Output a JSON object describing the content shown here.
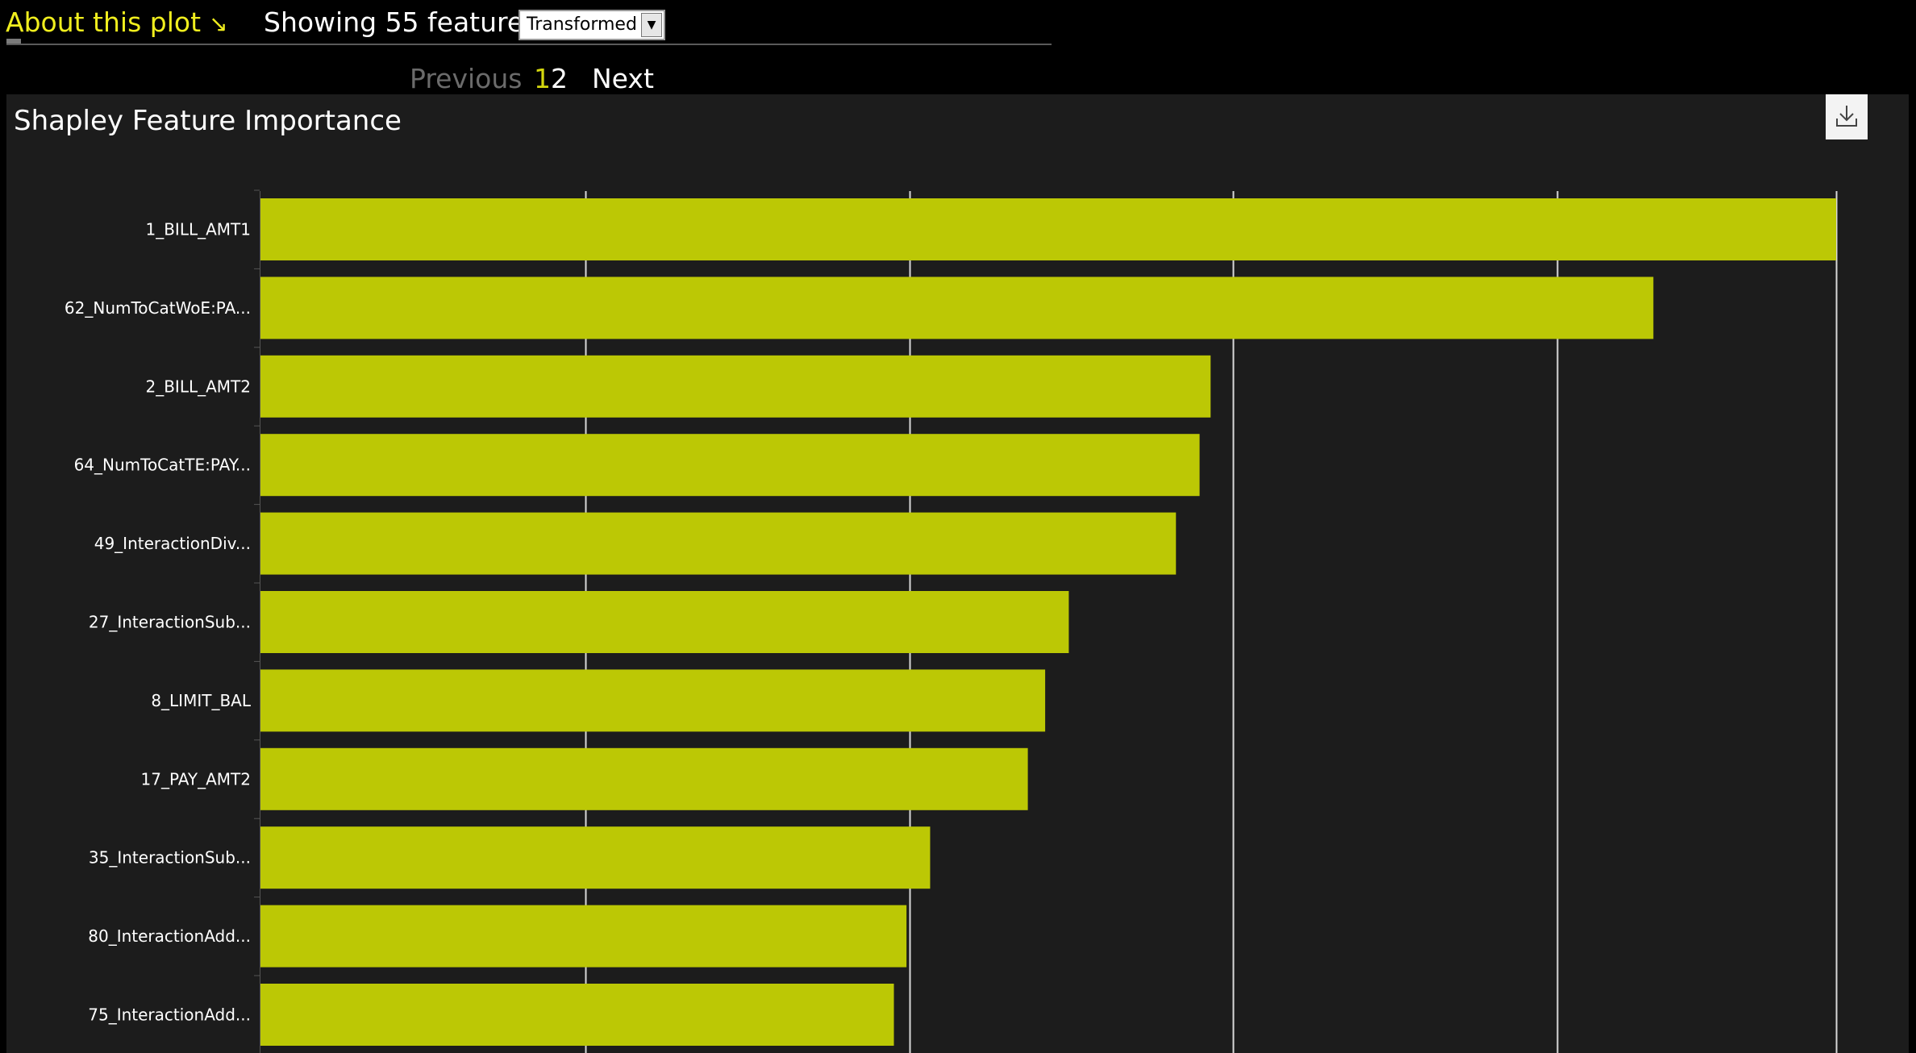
{
  "header": {
    "about_link": "About this plot",
    "about_arrow": "↘",
    "showing_label": "Showing 55 features:",
    "view_select_value": "Transformed"
  },
  "pager": {
    "previous": "Previous",
    "pages": [
      "1",
      "2"
    ],
    "next": "Next"
  },
  "chart_title": "Shapley Feature Importance",
  "download_icon": "download-icon",
  "colors": {
    "bar": "#bcc805",
    "accent": "#f0ee1e",
    "panel_bg": "#1c1c1c",
    "gridline": "#d8d8d8"
  },
  "chart_data": {
    "type": "bar",
    "orientation": "horizontal",
    "title": "Shapley Feature Importance",
    "categories": [
      "1_BILL_AMT1",
      "62_NumToCatWoE:PA...",
      "2_BILL_AMT2",
      "64_NumToCatTE:PAY...",
      "49_InteractionDiv...",
      "27_InteractionSub...",
      "8_LIMIT_BAL",
      "17_PAY_AMT2",
      "35_InteractionSub...",
      "80_InteractionAdd...",
      "75_InteractionAdd..."
    ],
    "values": [
      1.0,
      0.884,
      0.603,
      0.596,
      0.581,
      0.513,
      0.498,
      0.487,
      0.425,
      0.41,
      0.402
    ],
    "xlim": [
      0,
      1.0
    ],
    "x_gridlines": [
      0.206,
      0.412,
      0.617,
      0.823,
      1.0
    ],
    "grid": true,
    "xlabel": "",
    "ylabel": ""
  }
}
